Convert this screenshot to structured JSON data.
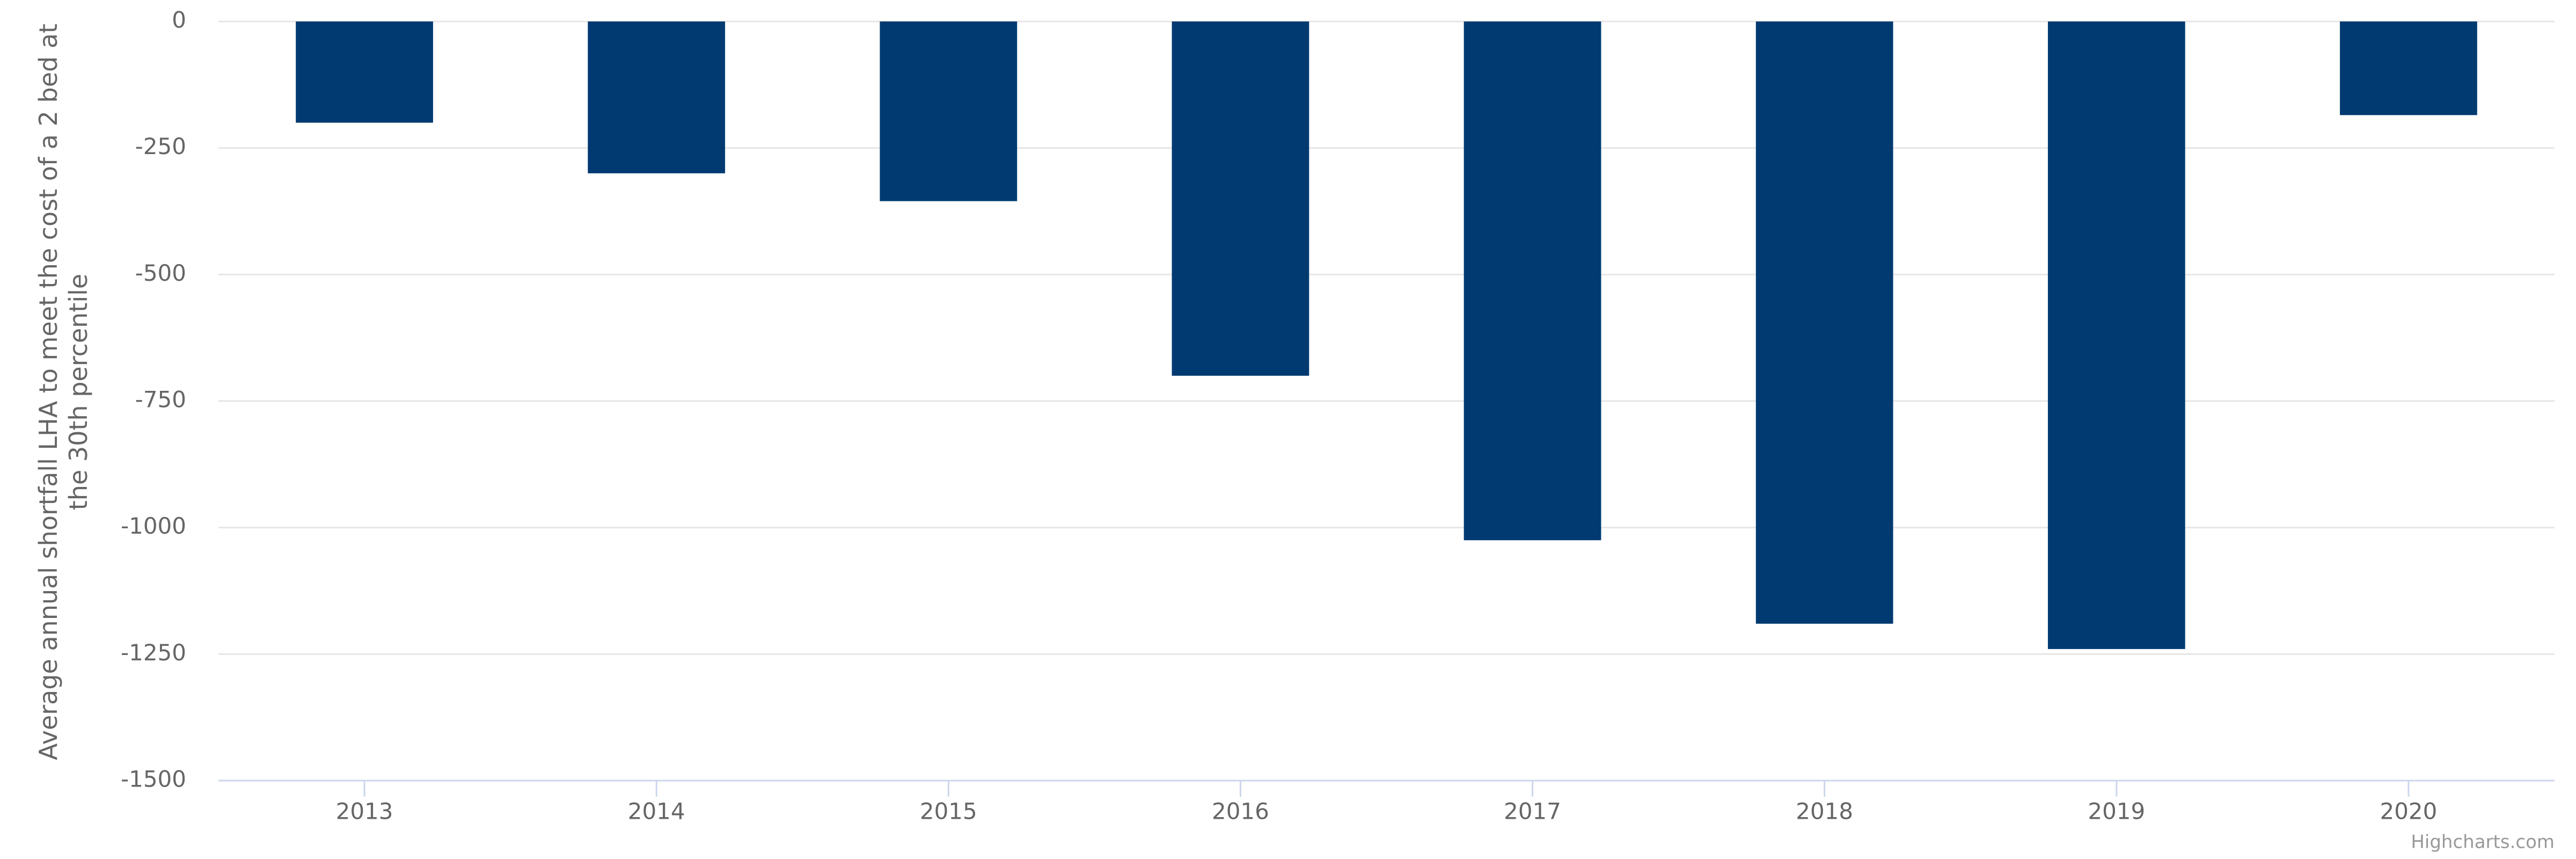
{
  "chart_data": {
    "type": "bar",
    "y_axis_label": "Average annual shortfall LHA to meet the cost of a 2 bed at the 30th percentile",
    "categories": [
      "2013",
      "2014",
      "2015",
      "2016",
      "2017",
      "2018",
      "2019",
      "2020"
    ],
    "values": [
      -200,
      -300,
      -355,
      -700,
      -1025,
      -1190,
      -1240,
      -185
    ],
    "color": "#003a70",
    "ylim": [
      -1500,
      0
    ],
    "yticks": [
      0,
      -250,
      -500,
      -750,
      -1000,
      -1250,
      -1500
    ],
    "grid": true,
    "credit": "Highcharts.com"
  }
}
